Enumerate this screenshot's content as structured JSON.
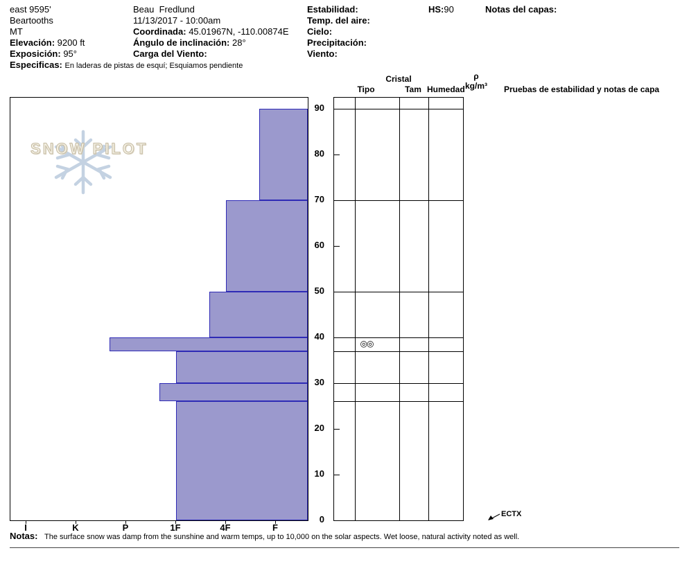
{
  "header": {
    "location": {
      "name": "east 9595'",
      "range": "Beartooths",
      "state": "MT",
      "elevation_label": "Elevación:",
      "elevation_value": "9200 ft",
      "aspect_label": "Exposición:",
      "aspect_value": "95°",
      "specifics_label": "Especificas:",
      "specifics_value": "En laderas de pistas de esquí; Esquiamos pendiente"
    },
    "observer": {
      "name": "Beau  Fredlund",
      "datetime": "11/13/2017 - 10:00am",
      "coord_label": "Coordinada:",
      "coord_value": "45.01967N, -110.00874E",
      "slope_label": "Ángulo de inclinación:",
      "slope_value": "28°",
      "windload_label": "Carga del Viento:"
    },
    "conditions": {
      "stability_label": "Estabilidad:",
      "airtemp_label": "Temp. del aire:",
      "sky_label": "Cielo:",
      "precip_label": "Precipitación:",
      "wind_label": "Viento:"
    },
    "hs_label": "HS:",
    "hs_value": "90",
    "layer_notes_label": "Notas del capas:"
  },
  "columns": {
    "cristal_label": "Cristal",
    "tipo_label": "Tipo",
    "tam_label": "Tam",
    "humedad_label": "Humedad",
    "density_symbol": "ρ",
    "density_units": "kg/m³",
    "tests_label": "Pruebas de estabilidad y notas de capa"
  },
  "logo": {
    "text": "SNOW PILOT"
  },
  "chart_data": {
    "type": "bar",
    "description": "Snowpit hand-hardness profile; horizontal bars per snow layer, depth in cm on vertical axis, hardness I-K-P-1F-4F-F on horizontal axis",
    "depth_axis": {
      "unit": "cm",
      "min": 0,
      "max": 90,
      "ticks": [
        0,
        10,
        20,
        30,
        40,
        50,
        60,
        70,
        80,
        90
      ]
    },
    "hardness_axis": {
      "categories": [
        "I",
        "K",
        "P",
        "1F",
        "4F",
        "F"
      ]
    },
    "layers": [
      {
        "top_cm": 90,
        "bottom_cm": 70,
        "hardness": "F+"
      },
      {
        "top_cm": 70,
        "bottom_cm": 50,
        "hardness": "4F"
      },
      {
        "top_cm": 50,
        "bottom_cm": 40,
        "hardness": "4F+"
      },
      {
        "top_cm": 40,
        "bottom_cm": 37,
        "hardness": "P+",
        "grain_type_symbol": "◎◎"
      },
      {
        "top_cm": 37,
        "bottom_cm": 30,
        "hardness": "1F"
      },
      {
        "top_cm": 30,
        "bottom_cm": 26,
        "hardness": "1F+"
      },
      {
        "top_cm": 26,
        "bottom_cm": 0,
        "hardness": "1F"
      }
    ],
    "bar_fill_color": "#9b99cd",
    "bar_border_color": "#2e2ab5",
    "stability_test": {
      "label": "ECTX",
      "depth_cm": 0
    }
  },
  "footer": {
    "notes_label": "Notas:",
    "notes_text": "The surface snow was damp from the sunshine and warm temps, up to 10,000 on the solar aspects.  Wet loose, natural activity noted as well."
  }
}
